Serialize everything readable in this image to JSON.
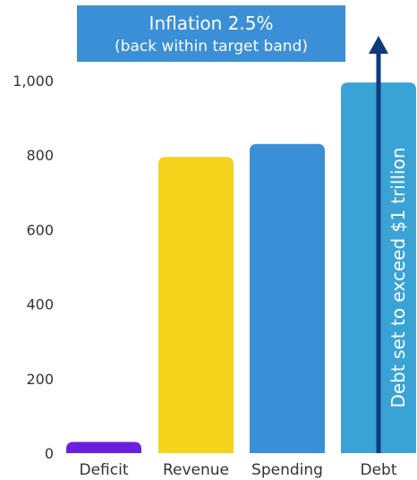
{
  "chart_data": {
    "type": "bar",
    "categories": [
      "Deficit",
      "Revenue",
      "Spending",
      "Debt"
    ],
    "values": [
      30,
      795,
      830,
      995
    ],
    "colors": [
      "#6a1fe0",
      "#f5d21c",
      "#3b8fd6",
      "#3aa3d6"
    ],
    "ylim": [
      0,
      1000
    ],
    "yticks": [
      "0",
      "200",
      "400",
      "600",
      "800",
      "1,000"
    ],
    "ytick_values": [
      0,
      200,
      400,
      600,
      800,
      1000
    ],
    "title": "",
    "xlabel": "",
    "ylabel": "",
    "grid": false,
    "banner": {
      "line1": "Inflation 2.5%",
      "line2": "(back within target band)",
      "color": "#3b8fd6"
    },
    "annotation": {
      "text": "Debt set to exceed $1 trillion",
      "arrow_color": "#0d3b7a"
    }
  }
}
